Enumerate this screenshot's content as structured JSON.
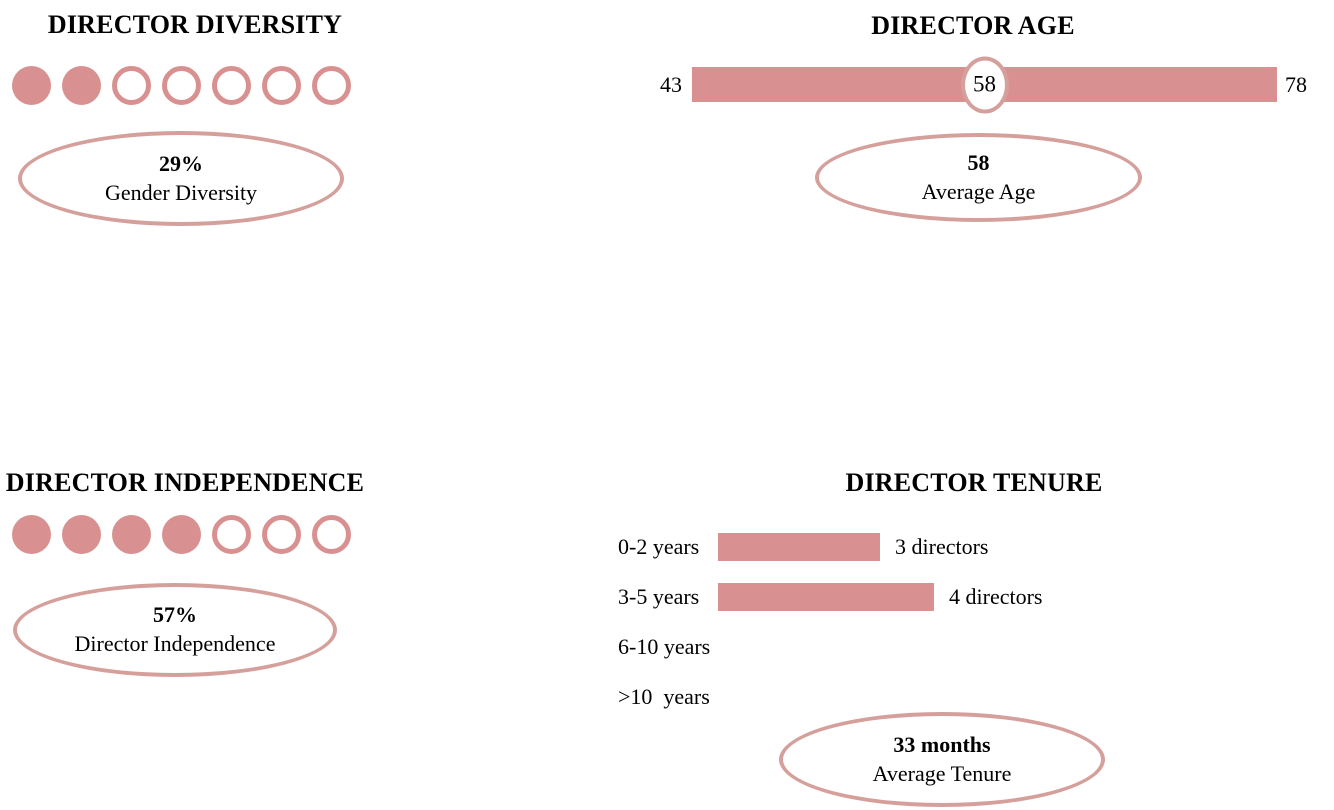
{
  "accent": {
    "fill": "#d89190",
    "outline": "#d5a09c"
  },
  "chart_data": [
    {
      "type": "pictogram",
      "title": "DIRECTOR DIVERSITY",
      "total": 7,
      "filled": 2,
      "stat_value": "29%",
      "stat_label": "Gender Diversity"
    },
    {
      "type": "range",
      "title": "DIRECTOR AGE",
      "min": "43",
      "max": "78",
      "marker": "58",
      "stat_value": "58",
      "stat_label": "Average Age"
    },
    {
      "type": "pictogram",
      "title": "DIRECTOR INDEPENDENCE",
      "total": 7,
      "filled": 4,
      "stat_value": "57%",
      "stat_label": "Director Independence"
    },
    {
      "type": "bar",
      "title": "DIRECTOR TENURE",
      "categories": [
        "0-2 years",
        "3-5 years",
        "6-10 years",
        ">10  years"
      ],
      "values": [
        3,
        4,
        0,
        0
      ],
      "value_labels": [
        "3 directors",
        "4 directors",
        "",
        ""
      ],
      "stat_value": "33 months",
      "stat_label": "Average Tenure"
    }
  ]
}
